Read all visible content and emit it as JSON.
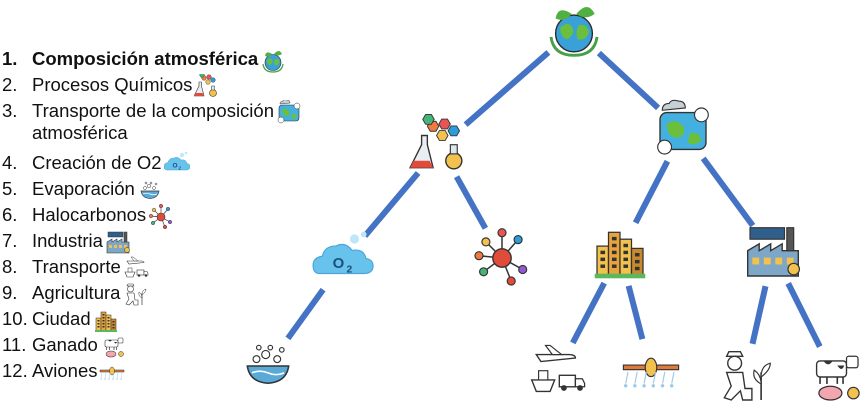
{
  "legend": [
    {
      "num": "1.",
      "label": "Composición atmosférica",
      "icon": "earth-leaves-icon",
      "bold": true
    },
    {
      "num": "2.",
      "label": "Procesos Químicos",
      "icon": "chemistry-flask-icon"
    },
    {
      "num": "3.",
      "label": "Transporte de la composición\natmosférica",
      "icon": "weather-globe-icon"
    },
    {
      "num": "4.",
      "label": "Creación de O2",
      "icon": "o2-cloud-icon"
    },
    {
      "num": "5.",
      "label": "Evaporación",
      "icon": "evaporation-bowl-icon"
    },
    {
      "num": "6.",
      "label": "Halocarbonos",
      "icon": "molecule-icon"
    },
    {
      "num": "7.",
      "label": "Industria",
      "icon": "factory-icon"
    },
    {
      "num": "8.",
      "label": "Transporte",
      "icon": "plane-truck-ship-icon"
    },
    {
      "num": "9.",
      "label": "Agricultura",
      "icon": "farmer-plant-icon"
    },
    {
      "num": "10.",
      "label": "Ciudad",
      "icon": "city-buildings-icon"
    },
    {
      "num": "11.",
      "label": "Ganado",
      "icon": "livestock-icon"
    },
    {
      "num": "12.",
      "label": "Aviones",
      "icon": "airplane-spray-icon"
    }
  ],
  "tree_nodes": [
    {
      "id": "composicion",
      "icon": "earth-leaves-icon"
    },
    {
      "id": "procesos",
      "icon": "chemistry-flask-icon"
    },
    {
      "id": "transporte-composicion",
      "icon": "weather-globe-icon"
    },
    {
      "id": "o2",
      "icon": "o2-cloud-icon",
      "text": "O2"
    },
    {
      "id": "halocarbonos",
      "icon": "molecule-icon"
    },
    {
      "id": "ciudad",
      "icon": "city-buildings-icon"
    },
    {
      "id": "industria",
      "icon": "factory-icon"
    },
    {
      "id": "evaporacion",
      "icon": "evaporation-bowl-icon"
    },
    {
      "id": "transporte",
      "icon": "plane-truck-ship-icon"
    },
    {
      "id": "aviones",
      "icon": "airplane-spray-icon"
    },
    {
      "id": "agricultura",
      "icon": "farmer-plant-icon"
    },
    {
      "id": "ganado",
      "icon": "livestock-icon"
    }
  ],
  "edges": [
    [
      "composicion",
      "procesos"
    ],
    [
      "composicion",
      "transporte-composicion"
    ],
    [
      "procesos",
      "o2"
    ],
    [
      "procesos",
      "halocarbonos"
    ],
    [
      "transporte-composicion",
      "ciudad"
    ],
    [
      "transporte-composicion",
      "industria"
    ],
    [
      "o2",
      "evaporacion"
    ],
    [
      "ciudad",
      "transporte"
    ],
    [
      "ciudad",
      "aviones"
    ],
    [
      "industria",
      "agricultura"
    ],
    [
      "industria",
      "ganado"
    ]
  ],
  "colors": {
    "edge": "#4472c4",
    "text": "#111111"
  }
}
